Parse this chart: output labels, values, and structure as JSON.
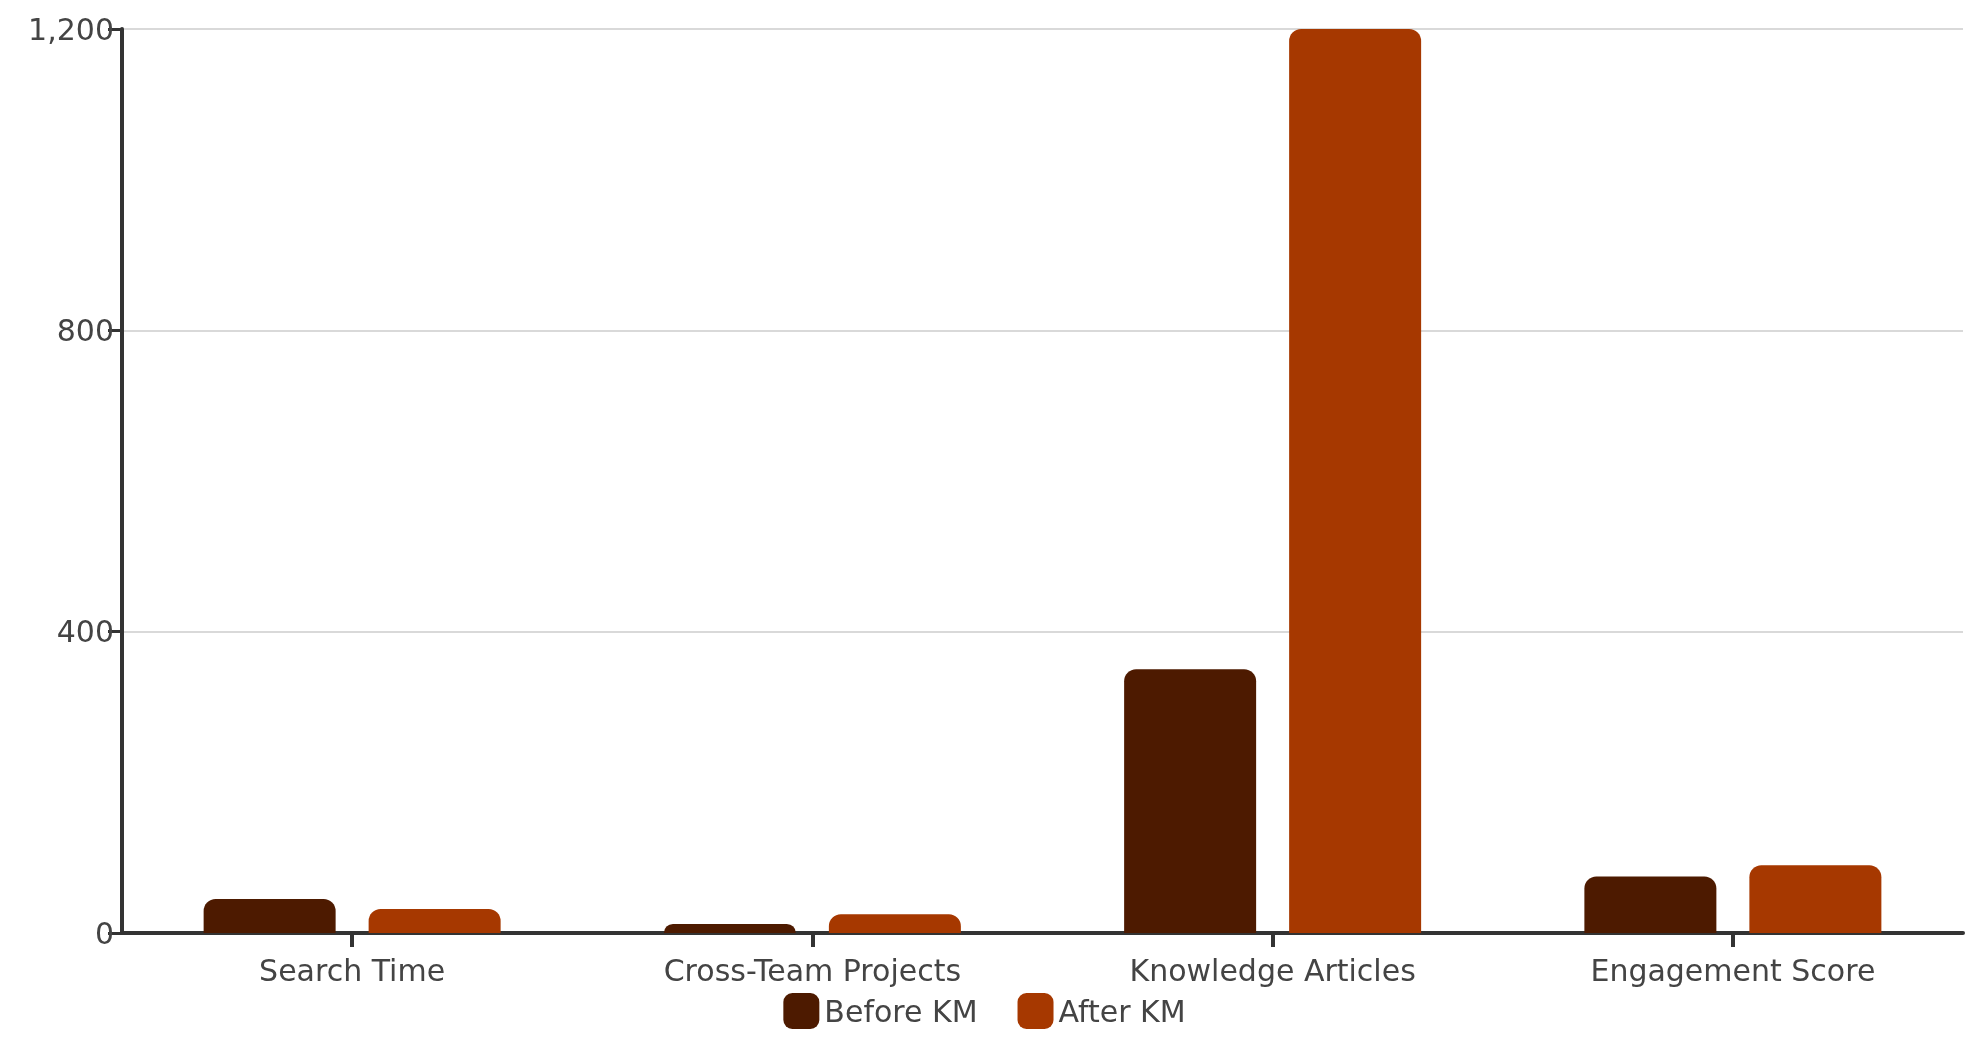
{
  "chart_data": {
    "type": "bar",
    "categories": [
      "Search Time",
      "Cross-Team Projects",
      "Knowledge Articles",
      "Engagement Score"
    ],
    "series": [
      {
        "name": "Before KM",
        "color": "#4d1a00",
        "values": [
          45,
          12,
          350,
          75
        ]
      },
      {
        "name": "After KM",
        "color": "#a63800",
        "values": [
          32,
          25,
          1200,
          90
        ]
      }
    ],
    "ylim": [
      0,
      1200
    ],
    "yticks": [
      0,
      400,
      800,
      {
        "value": 1200,
        "label": "1,200"
      }
    ],
    "grid": "y",
    "legend": "bottom"
  }
}
